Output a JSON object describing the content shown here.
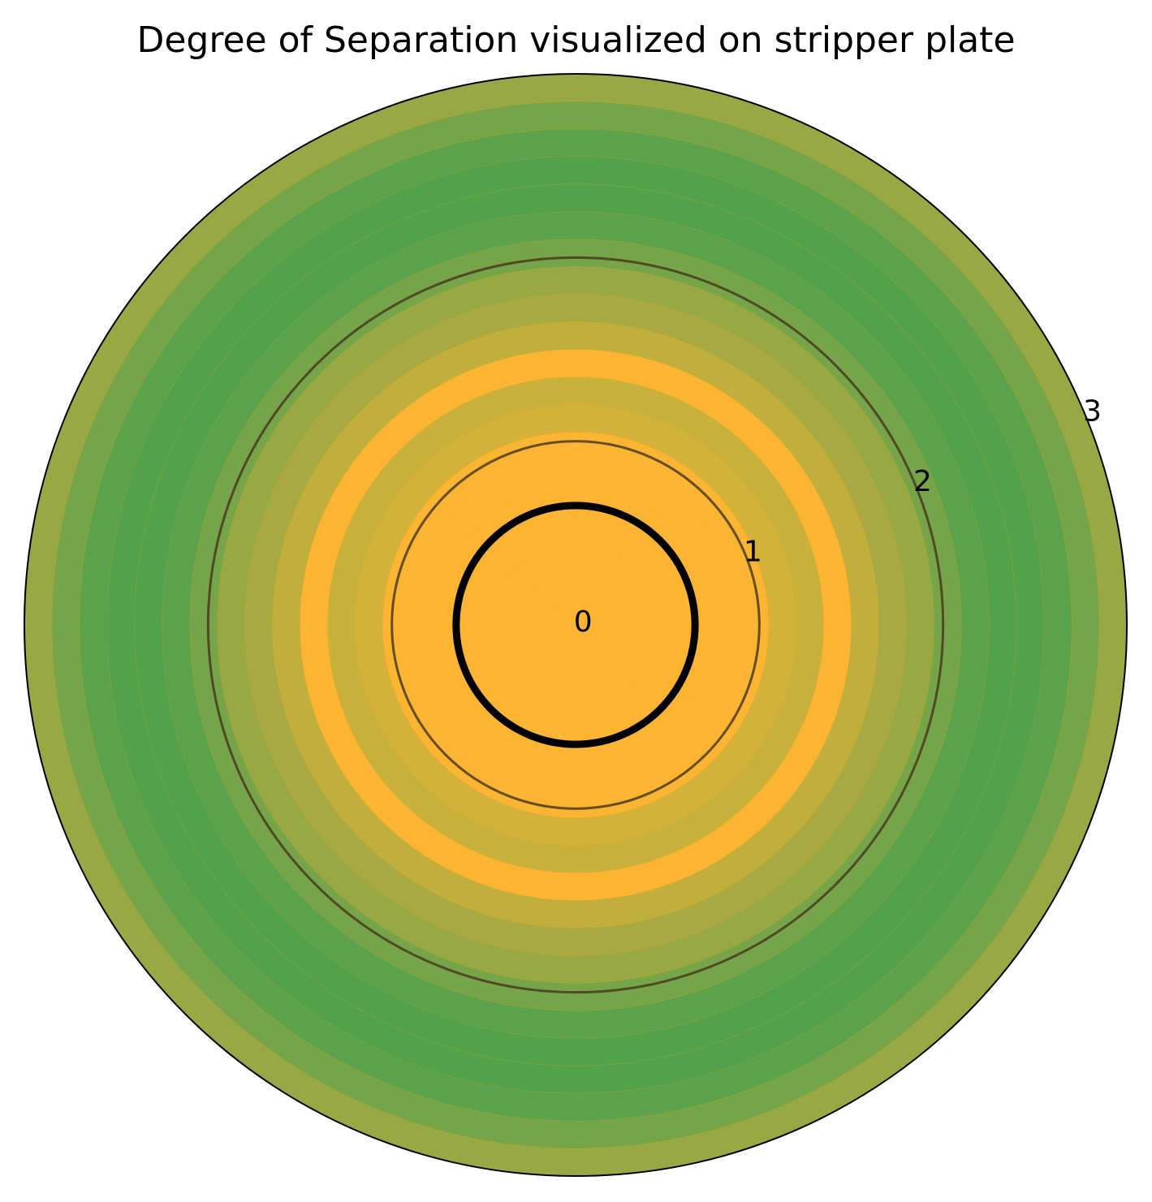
{
  "chart_data": {
    "type": "polar-radial-bands",
    "title": "Degree of Separation visualized on stripper plate",
    "r_range": [
      0,
      3
    ],
    "r_ticks": [
      "0",
      "1",
      "2",
      "3"
    ],
    "r_tick_values": [
      0,
      1,
      2,
      3
    ],
    "band_width": 0.15,
    "band_colors": [
      "#fcb532",
      "#fcb532",
      "#fcb532",
      "#fcb532",
      "#fcb532",
      "#fcb532",
      "#fcb532",
      "#d4b13a",
      "#c7b13c",
      "#fcb532",
      "#c1af3d",
      "#a7aa42",
      "#97a844",
      "#75a548",
      "#5aa24b",
      "#53a14b",
      "#53a14b",
      "#5aa24b",
      "#75a548",
      "#97a844",
      "#dcb03a",
      "#dcb03a",
      "#fcb532",
      "#fcb532",
      "#fcb532",
      "#fcb532",
      "#fcb532",
      "#fcb532",
      "#fcb532",
      "#fcb532",
      "#fcb532",
      "#fcb532",
      "#fcb532",
      "#fcb532",
      "#fcb532",
      "#fcb532",
      "#fcb532",
      "#fcb532",
      "#fcb532",
      "#fcb532"
    ],
    "reference_circles": [
      {
        "r": 0.65,
        "style": "thick"
      },
      {
        "r": 1.0,
        "style": "thin"
      },
      {
        "r": 2.0,
        "style": "thin"
      }
    ],
    "grid": false,
    "colors": {
      "boundary": "#000000",
      "reference": "#4a3a1f",
      "marker": "#000000"
    }
  }
}
